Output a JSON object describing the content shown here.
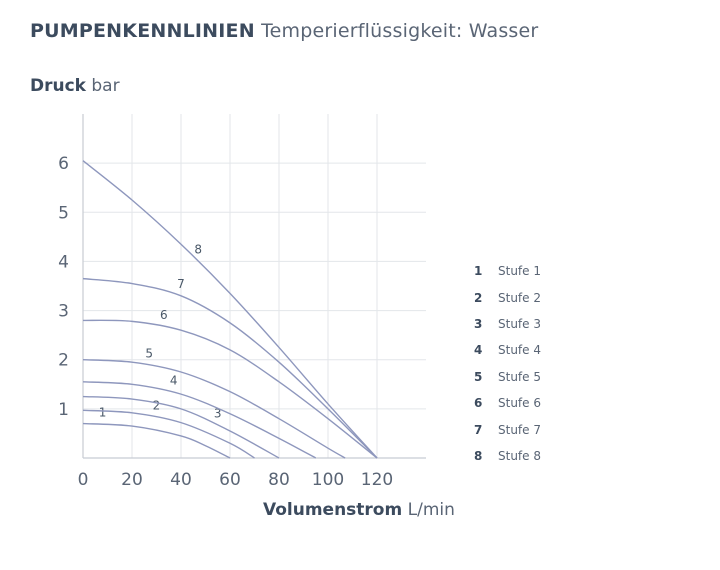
{
  "header": {
    "title_main": "PUMPENKENNLINIEN",
    "title_sub": "Temperierflüssigkeit: Wasser"
  },
  "axis": {
    "ylabel_main": "Druck",
    "ylabel_unit": "bar",
    "xlabel_main": "Volumenstrom",
    "xlabel_unit": "L/min"
  },
  "colors": {
    "curve": "#8e97bd",
    "grid": "#e3e6ea",
    "axis": "#c7ccd3"
  },
  "chart_data": {
    "type": "line",
    "xlim": [
      0,
      140
    ],
    "ylim": [
      0,
      7
    ],
    "xticks": [
      0,
      20,
      40,
      60,
      80,
      100,
      120
    ],
    "yticks": [
      1,
      2,
      3,
      4,
      5,
      6
    ],
    "grid": true,
    "legend_position": "right",
    "series": [
      {
        "name": "Stufe 1",
        "label": "1",
        "shutoff": 0.7,
        "x": [
          0,
          20,
          40,
          50,
          60
        ],
        "y": [
          0.7,
          0.65,
          0.45,
          0.25,
          0.0
        ]
      },
      {
        "name": "Stufe 2",
        "label": "2",
        "shutoff": 0.97,
        "x": [
          0,
          20,
          40,
          60,
          70
        ],
        "y": [
          0.97,
          0.92,
          0.72,
          0.3,
          0.0
        ]
      },
      {
        "name": "Stufe 3",
        "label": "3",
        "shutoff": 1.25,
        "x": [
          0,
          20,
          40,
          60,
          80
        ],
        "y": [
          1.25,
          1.2,
          1.0,
          0.55,
          0.0
        ]
      },
      {
        "name": "Stufe 4",
        "label": "4",
        "shutoff": 1.55,
        "x": [
          0,
          20,
          40,
          60,
          80,
          95
        ],
        "y": [
          1.55,
          1.5,
          1.3,
          0.9,
          0.4,
          0.0
        ]
      },
      {
        "name": "Stufe 5",
        "label": "5",
        "shutoff": 2.0,
        "x": [
          0,
          20,
          40,
          60,
          80,
          100,
          107
        ],
        "y": [
          2.0,
          1.95,
          1.75,
          1.35,
          0.8,
          0.2,
          0.0
        ]
      },
      {
        "name": "Stufe 6",
        "label": "6",
        "shutoff": 2.8,
        "x": [
          0,
          20,
          40,
          60,
          80,
          100,
          120
        ],
        "y": [
          2.8,
          2.78,
          2.6,
          2.2,
          1.55,
          0.8,
          0.0
        ]
      },
      {
        "name": "Stufe 7",
        "label": "7",
        "shutoff": 3.65,
        "x": [
          0,
          20,
          40,
          60,
          80,
          100,
          120
        ],
        "y": [
          3.65,
          3.55,
          3.3,
          2.75,
          1.95,
          1.0,
          0.0
        ]
      },
      {
        "name": "Stufe 8",
        "label": "8",
        "shutoff": 6.05,
        "x": [
          0,
          20,
          40,
          60,
          80,
          100,
          120
        ],
        "y": [
          6.05,
          5.25,
          4.35,
          3.35,
          2.25,
          1.1,
          0.0
        ]
      }
    ]
  }
}
